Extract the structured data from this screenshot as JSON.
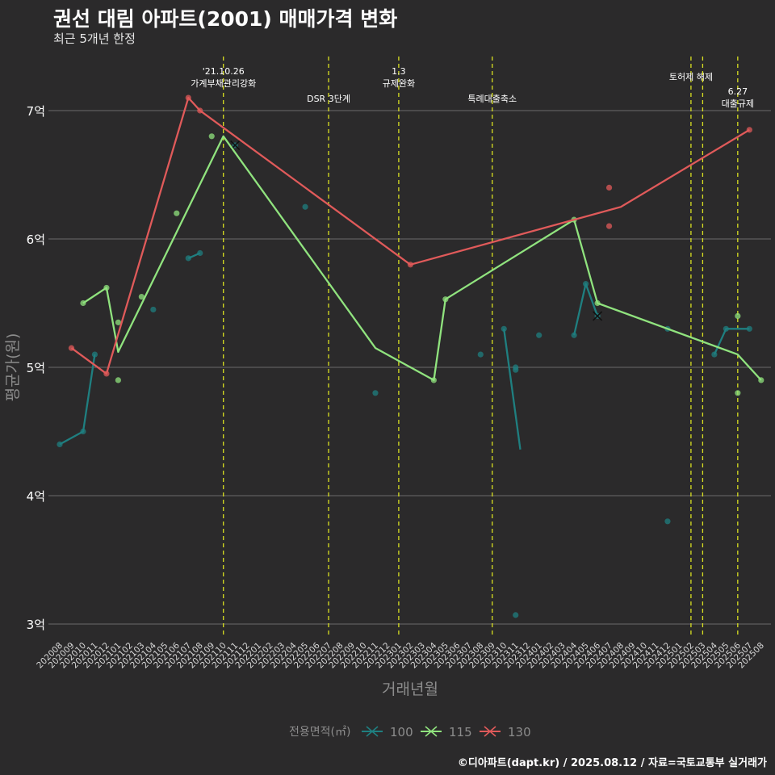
{
  "header": {
    "title": "권선 대림 아파트(2001) 매매가격 변화",
    "subtitle": "최근 5개년 한정"
  },
  "caption": "©디아파트(dapt.kr) / 2025.08.12 / 자료=국토교통부 실거래가",
  "colors": {
    "background": "#2b2a2b",
    "grid": "#6b6b6b",
    "event_line": "#d9e021",
    "s100": "#1f7f80",
    "s115": "#90e37e",
    "s130": "#e05a5a"
  },
  "chart_data": {
    "type": "line",
    "xlabel": "거래년월",
    "ylabel": "평균가(원)",
    "ylim": [
      2.9,
      7.4
    ],
    "y_ticks": [
      {
        "value": 3,
        "label": "3억"
      },
      {
        "value": 4,
        "label": "4억"
      },
      {
        "value": 5,
        "label": "5억"
      },
      {
        "value": 6,
        "label": "6억"
      },
      {
        "value": 7,
        "label": "7억"
      }
    ],
    "categories": [
      "202008",
      "202009",
      "202010",
      "202011",
      "202012",
      "202101",
      "202102",
      "202103",
      "202104",
      "202105",
      "202106",
      "202107",
      "202108",
      "202109",
      "202110",
      "202111",
      "202112",
      "202201",
      "202202",
      "202203",
      "202204",
      "202205",
      "202206",
      "202207",
      "202208",
      "202209",
      "202210",
      "202211",
      "202212",
      "202301",
      "202302",
      "202303",
      "202304",
      "202305",
      "202306",
      "202307",
      "202308",
      "202309",
      "202310",
      "202311",
      "202312",
      "202401",
      "202402",
      "202403",
      "202404",
      "202405",
      "202406",
      "202407",
      "202408",
      "202409",
      "202410",
      "202411",
      "202412",
      "202501",
      "202502",
      "202503",
      "202504",
      "202505",
      "202506",
      "202507",
      "202508"
    ],
    "legend": {
      "title": "전용면적(㎡)",
      "position": "bottom"
    },
    "events": [
      {
        "x": 14.0,
        "label": "'21.10.26\n가계부채관리강화",
        "row": 0
      },
      {
        "x": 23.0,
        "label": "DSR 3단계",
        "row": 1
      },
      {
        "x": 29.0,
        "label": "1.3\n규제완화",
        "row": 0
      },
      {
        "x": 37.0,
        "label": "특례대출축소",
        "row": 1
      },
      {
        "x": 54.0,
        "label": "토허제 해제",
        "row": 0
      },
      {
        "x": 55.0,
        "label": "",
        "row": 0
      },
      {
        "x": 58.0,
        "label": "6.27\n대출규제",
        "row": 2
      }
    ],
    "series": [
      {
        "name": "100",
        "color": "#1f7f80",
        "line_segments": [
          [
            [
              0,
              4.4
            ],
            [
              2,
              4.5
            ],
            [
              3,
              5.1
            ]
          ],
          [
            [
              11,
              5.85
            ],
            [
              12,
              5.89
            ]
          ],
          [
            [
              38,
              5.3
            ],
            [
              39.4,
              4.36
            ]
          ],
          [
            [
              44,
              5.25
            ],
            [
              45,
              5.65
            ],
            [
              46,
              5.4
            ]
          ],
          [
            [
              56,
              5.1
            ],
            [
              57,
              5.3
            ],
            [
              59,
              5.3
            ]
          ]
        ],
        "points": [
          [
            0,
            4.4
          ],
          [
            2,
            4.5
          ],
          [
            3,
            5.1
          ],
          [
            8,
            5.45
          ],
          [
            11,
            5.85
          ],
          [
            12,
            5.89
          ],
          [
            15,
            6.73
          ],
          [
            21,
            6.25
          ],
          [
            27,
            4.8
          ],
          [
            36,
            5.1
          ],
          [
            38,
            5.3
          ],
          [
            39,
            5.0
          ],
          [
            39,
            4.98
          ],
          [
            39,
            3.07
          ],
          [
            41,
            5.25
          ],
          [
            44,
            5.25
          ],
          [
            45,
            5.65
          ],
          [
            46,
            5.4
          ],
          [
            52,
            5.3
          ],
          [
            52,
            3.8
          ],
          [
            56,
            5.1
          ],
          [
            57,
            5.3
          ],
          [
            59,
            5.3
          ]
        ],
        "cross_points": [
          [
            15,
            6.73
          ],
          [
            46,
            5.4
          ]
        ]
      },
      {
        "name": "115",
        "color": "#90e37e",
        "line_segments": [
          [
            [
              2,
              5.5
            ],
            [
              4,
              5.62
            ],
            [
              5,
              5.12
            ],
            [
              14,
              6.8
            ],
            [
              27,
              5.15
            ],
            [
              32,
              4.9
            ],
            [
              33,
              5.53
            ],
            [
              44,
              6.15
            ],
            [
              46,
              5.5
            ],
            [
              58,
              5.1
            ],
            [
              60,
              4.9
            ]
          ]
        ],
        "points": [
          [
            2,
            5.5
          ],
          [
            4,
            5.62
          ],
          [
            5,
            5.35
          ],
          [
            5,
            4.9
          ],
          [
            7,
            5.55
          ],
          [
            10,
            6.2
          ],
          [
            13,
            6.8
          ],
          [
            32,
            4.9
          ],
          [
            33,
            5.53
          ],
          [
            44,
            6.15
          ],
          [
            46,
            5.5
          ],
          [
            58,
            5.4
          ],
          [
            58,
            4.8
          ],
          [
            60,
            4.9
          ]
        ],
        "cross_points": []
      },
      {
        "name": "130",
        "color": "#e05a5a",
        "line_segments": [
          [
            [
              1,
              5.15
            ],
            [
              4,
              4.95
            ],
            [
              11,
              7.1
            ],
            [
              12,
              7.0
            ],
            [
              30,
              5.8
            ],
            [
              48,
              6.25
            ],
            [
              59,
              6.85
            ]
          ]
        ],
        "points": [
          [
            1,
            5.15
          ],
          [
            4,
            4.95
          ],
          [
            11,
            7.1
          ],
          [
            12,
            7.0
          ],
          [
            30,
            5.8
          ],
          [
            47,
            6.4
          ],
          [
            47,
            6.1
          ],
          [
            59,
            6.85
          ]
        ],
        "cross_points": []
      }
    ]
  }
}
